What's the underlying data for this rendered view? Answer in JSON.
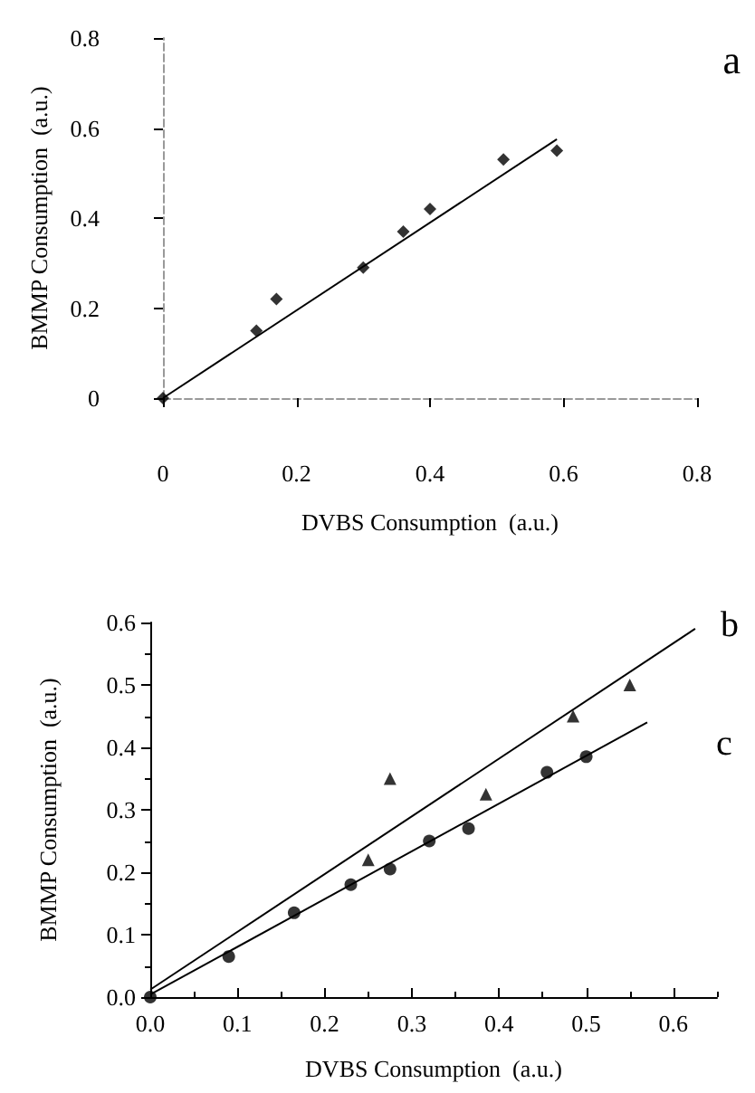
{
  "chart_data": [
    {
      "type": "scatter",
      "xlabel": "DVBS Consumption  (a.u.)",
      "ylabel": "BMMP Consumption  (a.u.)",
      "annotations": [
        "a"
      ],
      "xlim": [
        0,
        0.8
      ],
      "xticks": [
        0,
        0.2,
        0.4,
        0.6,
        0.8
      ],
      "ylim": [
        0,
        0.8
      ],
      "yticks": [
        0,
        0.2,
        0.4,
        0.6,
        0.8
      ],
      "grid": false,
      "legend": false,
      "series": [
        {
          "color": "#000000",
          "marker": "diamond",
          "x": [
            0,
            0.14,
            0.17,
            0.3,
            0.36,
            0.4,
            0.51,
            0.59
          ],
          "values": [
            0,
            0.15,
            0.22,
            0.29,
            0.37,
            0.42,
            0.53,
            0.55
          ]
        },
        {
          "type": "line",
          "color": "#000000",
          "marker": "none",
          "x": [
            0,
            0.59
          ],
          "values": [
            0,
            0.575
          ]
        }
      ]
    },
    {
      "type": "scatter",
      "xlabel": "DVBS Consumption  (a.u.)",
      "ylabel": "BMMP Consumption  (a.u.)",
      "xlim": [
        0,
        0.65
      ],
      "xticks": [
        {
          "value": 0,
          "label": "0.0"
        },
        0.1,
        0.2,
        0.3,
        0.4,
        0.5,
        0.6
      ],
      "ylim": [
        0,
        0.6
      ],
      "yticks": [
        {
          "value": 0,
          "label": "0.0"
        },
        0.1,
        0.2,
        0.3,
        0.4,
        0.5,
        0.6
      ],
      "grid": false,
      "legend": false,
      "series": [
        {
          "color": "#000000",
          "marker": "triangle",
          "x": [
            0.25,
            0.275,
            0.385,
            0.485,
            0.55
          ],
          "values": [
            0.22,
            0.35,
            0.325,
            0.45,
            0.5
          ]
        },
        {
          "color": "#000000",
          "marker": "circle",
          "x": [
            0,
            0.09,
            0.165,
            0.23,
            0.275,
            0.32,
            0.365,
            0.455,
            0.5
          ],
          "values": [
            0,
            0.065,
            0.135,
            0.18,
            0.205,
            0.25,
            0.27,
            0.36,
            0.385
          ]
        },
        {
          "type": "line",
          "name": "b",
          "color": "#000000",
          "marker": "none",
          "x": [
            0,
            0.625
          ],
          "values": [
            0.012,
            0.59
          ]
        },
        {
          "type": "line",
          "name": "c",
          "color": "#000000",
          "marker": "none",
          "x": [
            0,
            0.57
          ],
          "values": [
            0.004,
            0.44
          ]
        }
      ]
    }
  ]
}
